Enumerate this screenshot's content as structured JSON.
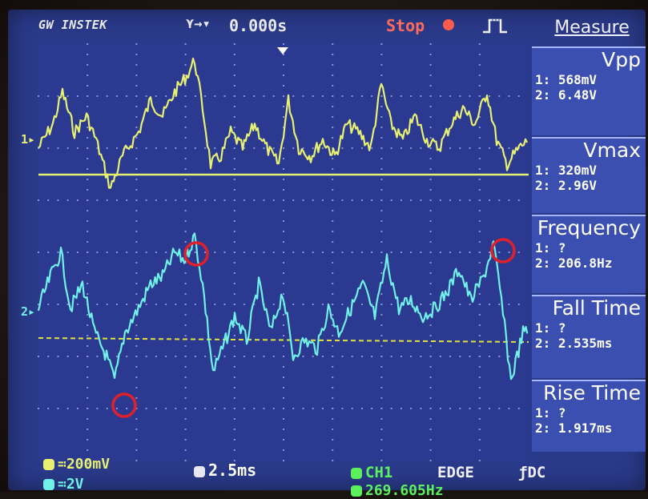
{
  "header": {
    "brand": "GW INSTEK",
    "trigger_arrows": "⋎→▾",
    "time_offset": "0.000s",
    "run_status": "Stop",
    "trigger_edge_icon": "rising-edge-pulse-icon"
  },
  "channels": {
    "ch1_marker": "1▸",
    "ch2_marker": "2▸",
    "ch1_color": "#e7f070",
    "ch2_color": "#70f0e8"
  },
  "measure": {
    "title": "Measure",
    "items": [
      {
        "name": "Vpp",
        "ch1": "1: 568mV",
        "ch2": "2: 6.48V"
      },
      {
        "name": "Vmax",
        "ch1": "1: 320mV",
        "ch2": "2: 2.96V"
      },
      {
        "name": "Frequency",
        "ch1": "1:    ?",
        "ch2": "2: 206.8Hz"
      },
      {
        "name": "Fall Time",
        "ch1": "1:    ?",
        "ch2": "2: 2.535ms"
      },
      {
        "name": "Rise Time",
        "ch1": "1:    ?",
        "ch2": "2: 1.917ms"
      }
    ]
  },
  "footer": {
    "ch1_scale": "200mV",
    "ch2_scale": "2V",
    "coupling_symbol": "≕",
    "timebase": "2.5ms",
    "trigger_source": "CH1",
    "trigger_type": "EDGE",
    "trigger_coupling": "ƒDC",
    "trigger_freq": "269.605Hz"
  },
  "colors": {
    "screen_bg": "#2b3a90",
    "grid_dots": "#8a94d8",
    "stop": "#ff6a5a",
    "annotation_circle": "#e0202a"
  }
}
